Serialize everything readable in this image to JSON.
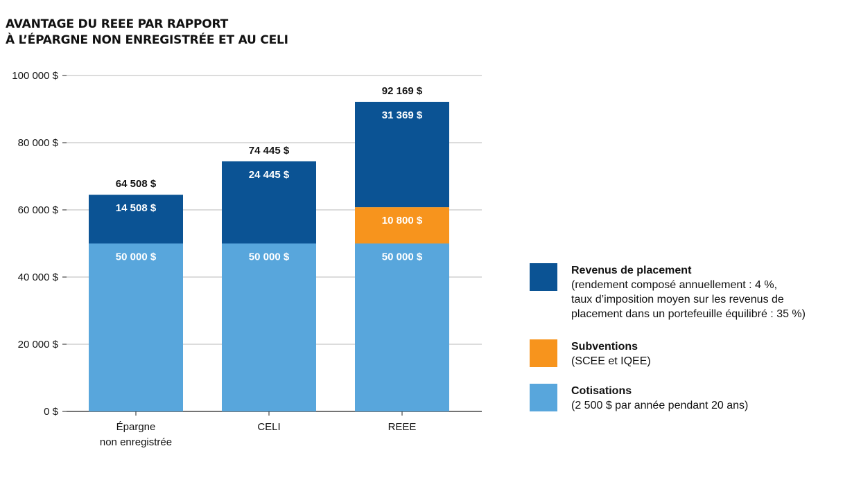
{
  "chart_data": {
    "type": "bar",
    "stacked": true,
    "title_lines": [
      "AVANTAGE DU REEE PAR RAPPORT",
      "À L’ÉPARGNE NON ENREGISTRÉE ET AU CELI"
    ],
    "categories": [
      "Épargne\nnon enregistrée",
      "CELI",
      "REEE"
    ],
    "ylim": [
      0,
      100000
    ],
    "yticks": [
      0,
      20000,
      40000,
      60000,
      80000,
      100000
    ],
    "ytick_labels": [
      "0 $",
      "20 000 $",
      "40 000 $",
      "60 000 $",
      "80 000 $",
      "100 000 $"
    ],
    "grid": true,
    "legend_position": "right",
    "series": [
      {
        "name": "Cotisations",
        "color": "#58a6dc",
        "values": [
          50000,
          50000,
          50000
        ],
        "labels": [
          "50 000 $",
          "50 000 $",
          "50 000 $"
        ]
      },
      {
        "name": "Subventions",
        "color": "#f7941d",
        "values": [
          0,
          0,
          10800
        ],
        "labels": [
          "",
          "",
          "10 800 $"
        ]
      },
      {
        "name": "Revenus de placement",
        "color": "#0b5394",
        "values": [
          14508,
          24445,
          31369
        ],
        "labels": [
          "14 508 $",
          "24 445 $",
          "31 369 $"
        ]
      }
    ],
    "totals": [
      64508,
      74445,
      92169
    ],
    "total_labels": [
      "64 508 $",
      "74 445 $",
      "92 169 $"
    ]
  },
  "legend": [
    {
      "name": "Revenus de placement",
      "color": "#0b5394",
      "desc": [
        "(rendement composé annuellement : 4 %,",
        "taux d’imposition moyen sur les revenus de",
        "placement dans un portefeuille équilibré : 35 %)"
      ]
    },
    {
      "name": "Subventions",
      "color": "#f7941d",
      "desc": [
        "(SCEE et IQEE)"
      ]
    },
    {
      "name": "Cotisations",
      "color": "#58a6dc",
      "desc": [
        "(2 500 $ par année pendant 20 ans)"
      ]
    }
  ]
}
